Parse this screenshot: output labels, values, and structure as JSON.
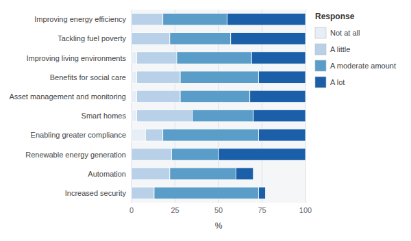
{
  "chart_data": {
    "type": "bar",
    "orientation": "horizontal",
    "stacked": true,
    "categories": [
      "Improving energy efficiency",
      "Tackling fuel poverty",
      "Improving living environments",
      "Benefits for social care",
      "Asset management and monitoring",
      "Smart homes",
      "Enabling greater compliance",
      "Renewable energy generation",
      "Automation",
      "Increased security"
    ],
    "series": [
      {
        "name": "Not at all",
        "color": "#e8eef5",
        "values": [
          0,
          0,
          3,
          3,
          3,
          3,
          8,
          0,
          0,
          0
        ]
      },
      {
        "name": "A little",
        "color": "#b8d0e8",
        "values": [
          18,
          22,
          23,
          25,
          25,
          32,
          10,
          23,
          22,
          13
        ]
      },
      {
        "name": "A moderate amount",
        "color": "#5b9dc9",
        "values": [
          37,
          35,
          43,
          45,
          40,
          35,
          55,
          27,
          38,
          60
        ]
      },
      {
        "name": "A lot",
        "color": "#1a5fa8",
        "values": [
          45,
          43,
          31,
          27,
          32,
          30,
          27,
          50,
          10,
          4
        ]
      }
    ],
    "legend_title": "Response",
    "legend": "right",
    "xlabel": "%",
    "xlim": [
      0,
      100
    ],
    "xticks": [
      0,
      25,
      50,
      75,
      100
    ],
    "grid": true
  }
}
